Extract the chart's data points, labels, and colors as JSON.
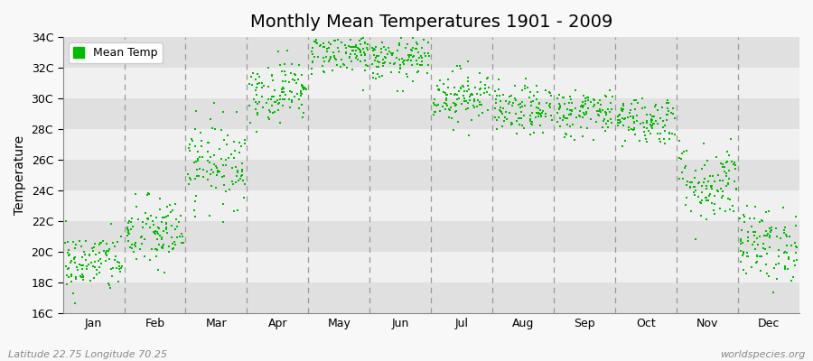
{
  "title": "Monthly Mean Temperatures 1901 - 2009",
  "ylabel": "Temperature",
  "xlabel_labels": [
    "Jan",
    "Feb",
    "Mar",
    "Apr",
    "May",
    "Jun",
    "Jul",
    "Aug",
    "Sep",
    "Oct",
    "Nov",
    "Dec"
  ],
  "footer_left": "Latitude 22.75 Longitude 70.25",
  "footer_right": "worldspecies.org",
  "legend_label": "Mean Temp",
  "ylim": [
    16,
    34
  ],
  "ytick_values": [
    16,
    18,
    20,
    22,
    24,
    26,
    28,
    30,
    32,
    34
  ],
  "ytick_labels": [
    "16C",
    "18C",
    "20C",
    "22C",
    "24C",
    "26C",
    "28C",
    "30C",
    "32C",
    "34C"
  ],
  "n_years": 109,
  "monthly_means": [
    19.3,
    21.2,
    25.8,
    30.5,
    33.0,
    32.5,
    30.2,
    29.2,
    29.1,
    28.6,
    24.5,
    20.5
  ],
  "monthly_stds": [
    1.0,
    1.2,
    1.4,
    1.0,
    0.7,
    0.7,
    0.9,
    0.8,
    0.8,
    0.8,
    1.3,
    1.2
  ],
  "marker_color": "#00bb00",
  "marker_size": 3,
  "bg_color_light": "#f0f0f0",
  "bg_color_dark": "#e0e0e0",
  "figure_bg": "#f8f8f8",
  "vline_color": "#999999",
  "title_fontsize": 14,
  "axis_fontsize": 10,
  "tick_fontsize": 9,
  "footer_fontsize": 8,
  "legend_fontsize": 9
}
